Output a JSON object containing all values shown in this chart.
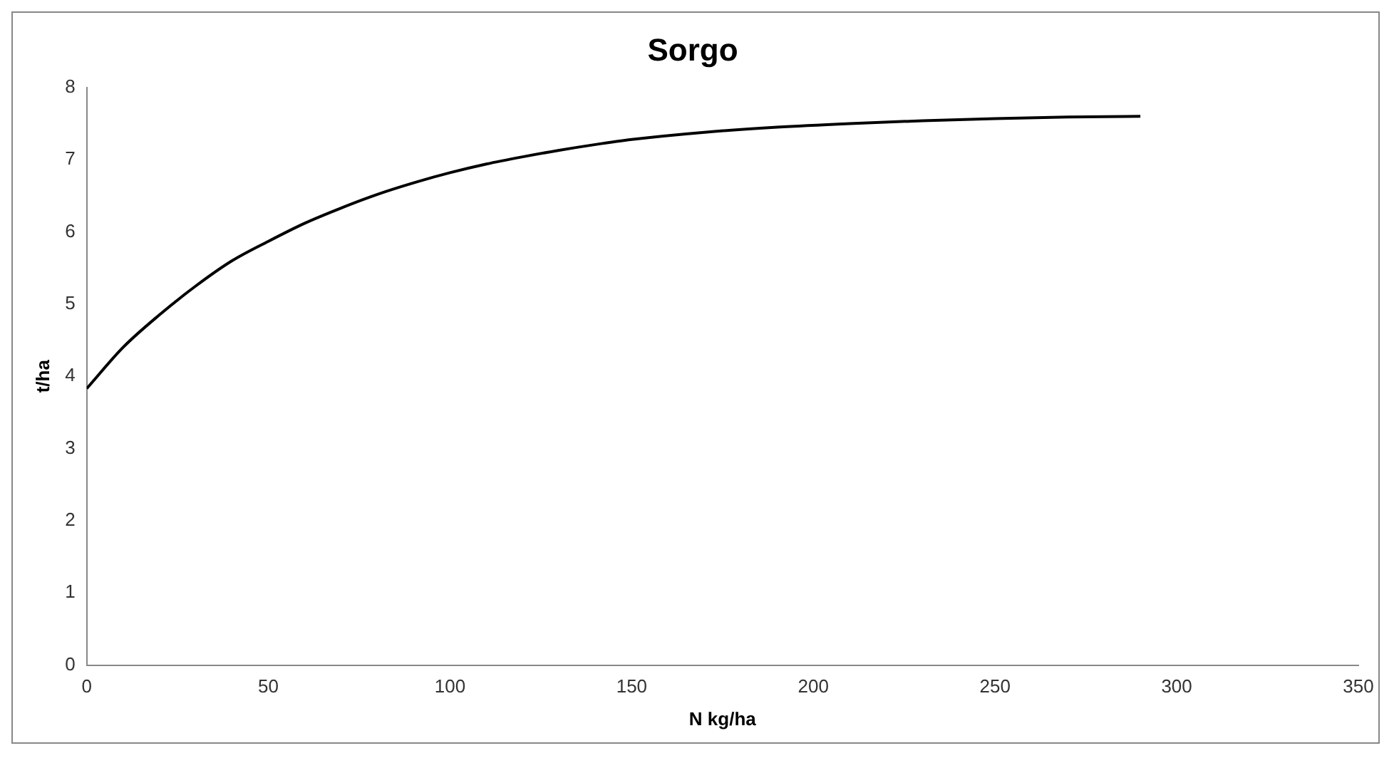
{
  "chart_data": {
    "type": "line",
    "title": "Sorgo",
    "xlabel": "N kg/ha",
    "ylabel": "t/ha",
    "x": [
      0,
      10,
      20,
      30,
      40,
      50,
      60,
      70,
      80,
      90,
      100,
      110,
      120,
      130,
      140,
      150,
      170,
      190,
      210,
      230,
      250,
      270,
      290
    ],
    "series": [
      {
        "color": "#000000",
        "values": [
          3.83,
          4.4,
          4.85,
          5.25,
          5.6,
          5.87,
          6.12,
          6.33,
          6.52,
          6.68,
          6.82,
          6.94,
          7.04,
          7.13,
          7.21,
          7.28,
          7.38,
          7.45,
          7.5,
          7.54,
          7.57,
          7.59,
          7.6
        ]
      }
    ],
    "xlim": [
      0,
      350
    ],
    "xticks": [
      0,
      50,
      100,
      150,
      200,
      250,
      300,
      350
    ],
    "ylim": [
      0,
      8
    ],
    "yticks": [
      0,
      1,
      2,
      3,
      4,
      5,
      6,
      7,
      8
    ],
    "grid": false,
    "legend": false,
    "marker": "none",
    "line_style": "solid"
  }
}
